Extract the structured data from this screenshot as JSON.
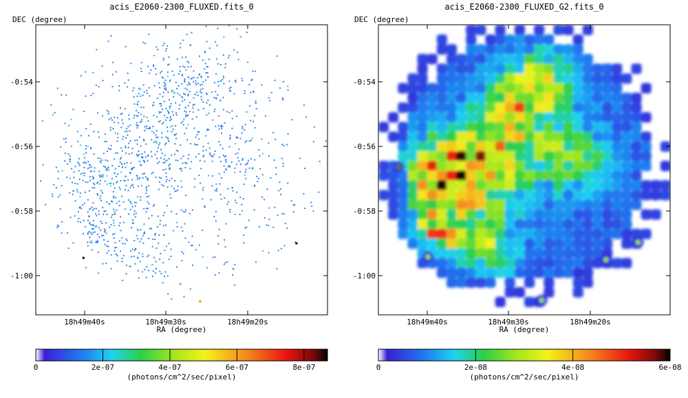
{
  "chart_data": [
    {
      "type": "heatmap",
      "title": "acis_E2060-2300_FLUXED.fits_0",
      "xlabel": "RA (degree)",
      "ylabel": "DEC (degree)",
      "x_ticks": [
        "18h49m40s",
        "18h49m30s",
        "18h49m20s"
      ],
      "y_ticks": [
        "-0:54",
        "-0:56",
        "-0:58",
        "-1:00"
      ],
      "colorbar": {
        "label": "(photons/cm^2/sec/pixel)",
        "min": 0,
        "max": 8.7e-07,
        "ticks": [
          {
            "value": 0,
            "label": "0"
          },
          {
            "value": 2e-07,
            "label": "2e-07"
          },
          {
            "value": 4e-07,
            "label": "4e-07"
          },
          {
            "value": 6e-07,
            "label": "6e-07"
          },
          {
            "value": 8e-07,
            "label": "8e-07"
          }
        ]
      },
      "colors": [
        "#ffffff",
        "#3a1fd6",
        "#1fb8f2",
        "#2ccf4a",
        "#f4f21a",
        "#f58a1c",
        "#e8140f",
        "#000000"
      ]
    },
    {
      "type": "heatmap",
      "title": "acis_E2060-2300_FLUXED_G2.fits_0",
      "xlabel": "RA (degree)",
      "ylabel": "DEC (degree)",
      "x_ticks": [
        "18h49m40s",
        "18h49m30s",
        "18h49m20s"
      ],
      "y_ticks": [
        "-0:54",
        "-0:56",
        "-0:58",
        "-1:00"
      ],
      "colorbar": {
        "label": "(photons/cm^2/sec/pixel)",
        "min": 0,
        "max": 6e-08,
        "ticks": [
          {
            "value": 0,
            "label": "0"
          },
          {
            "value": 2e-08,
            "label": "2e-08"
          },
          {
            "value": 4e-08,
            "label": "4e-08"
          },
          {
            "value": 6e-08,
            "label": "6e-08"
          }
        ]
      },
      "colors": [
        "#ffffff",
        "#3a1fd6",
        "#1fb8f2",
        "#2ccf4a",
        "#f4f21a",
        "#f58a1c",
        "#e8140f",
        "#000000"
      ]
    }
  ]
}
